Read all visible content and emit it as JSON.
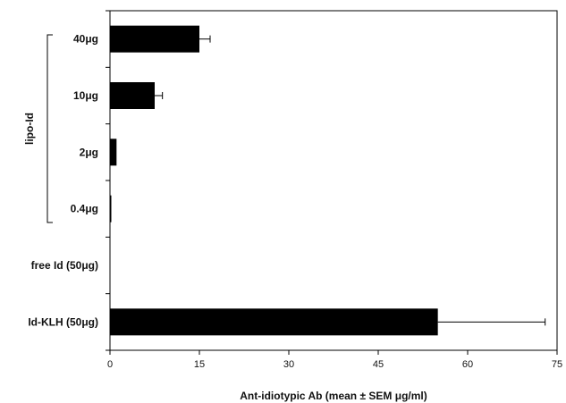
{
  "chart_data": {
    "type": "bar",
    "orientation": "horizontal",
    "categories": [
      "40μg",
      "10μg",
      "2μg",
      "0.4μg",
      "free Id (50μg)",
      "Id-KLH (50μg)"
    ],
    "values": [
      15,
      7.5,
      1.1,
      0.2,
      0,
      55
    ],
    "errors": [
      1.8,
      1.3,
      0,
      0,
      0,
      18
    ],
    "xlabel": "Ant-idiotypic Ab (mean ± SEM μg/ml)",
    "ylabel": "",
    "xlim": [
      0,
      75
    ],
    "xticks": [
      "0",
      "15",
      "30",
      "45",
      "60",
      "75"
    ],
    "group_label": "lipo-Id",
    "group_categories": [
      "40μg",
      "10μg",
      "2μg",
      "0.4μg"
    ],
    "bar_color": "#000000",
    "grid": false
  }
}
